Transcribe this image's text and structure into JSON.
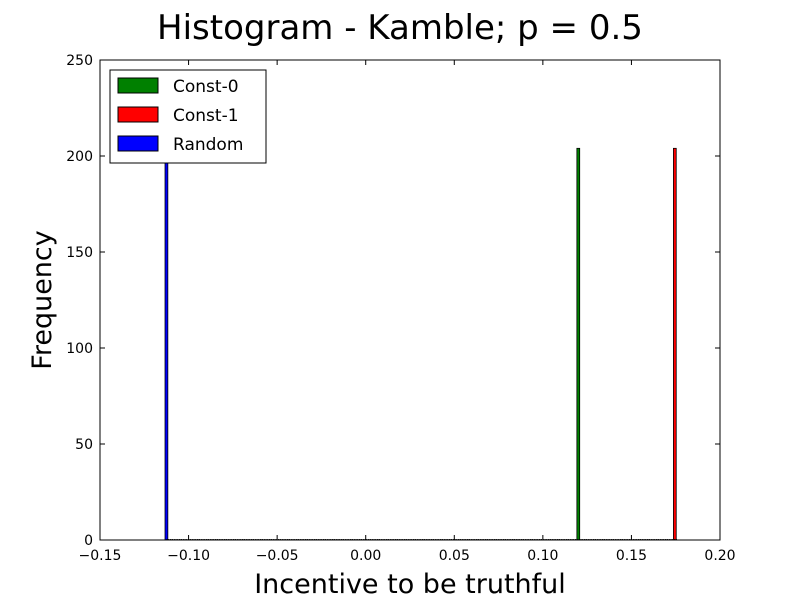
{
  "chart_data": {
    "type": "bar",
    "title": "Histogram - Kamble;  p = 0.5",
    "xlabel": "Incentive to be truthful",
    "ylabel": "Frequency",
    "xlim": [
      -0.15,
      0.2
    ],
    "ylim": [
      0,
      250
    ],
    "xticks": [
      "−0.15",
      "−0.10",
      "−0.05",
      "0.00",
      "0.05",
      "0.10",
      "0.15",
      "0.20"
    ],
    "yticks": [
      "0",
      "50",
      "100",
      "150",
      "200",
      "250"
    ],
    "grid": false,
    "legend_position": "top-left",
    "series": [
      {
        "name": "Const-0",
        "color": "#008000",
        "bins": [
          {
            "x": 0.12,
            "value": 204
          }
        ]
      },
      {
        "name": "Const-1",
        "color": "#ff0000",
        "bins": [
          {
            "x": 0.1745,
            "value": 204
          }
        ]
      },
      {
        "name": "Random",
        "color": "#0000ff",
        "bins": [
          {
            "x": -0.1125,
            "value": 204
          }
        ]
      }
    ]
  }
}
